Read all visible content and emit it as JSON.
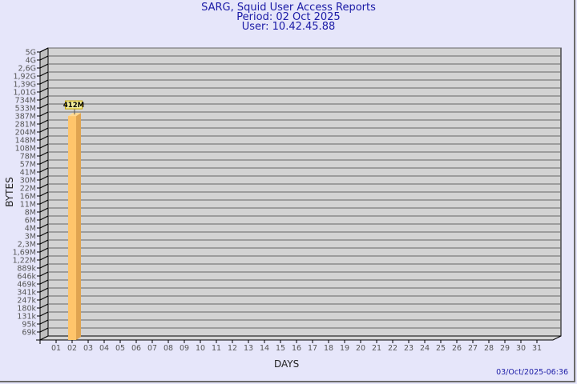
{
  "chart_data": {
    "type": "bar",
    "title": [
      "SARG, Squid User Access Reports",
      "Period: 02 Oct 2025",
      "User: 10.42.45.88"
    ],
    "xlabel": "DAYS",
    "ylabel": "BYTES",
    "y_scale": "log",
    "y_ticks": [
      "5G",
      "4G",
      "2,6G",
      "1,92G",
      "1,39G",
      "1,01G",
      "734M",
      "533M",
      "387M",
      "281M",
      "204M",
      "148M",
      "108M",
      "78M",
      "57M",
      "41M",
      "30M",
      "22M",
      "16M",
      "11M",
      "8M",
      "6M",
      "4M",
      "3M",
      "2,3M",
      "1,69M",
      "1,22M",
      "889k",
      "646k",
      "469k",
      "341k",
      "247k",
      "180k",
      "131k",
      "95k",
      "69k"
    ],
    "categories": [
      "01",
      "02",
      "03",
      "04",
      "05",
      "06",
      "07",
      "08",
      "09",
      "10",
      "11",
      "12",
      "13",
      "14",
      "15",
      "16",
      "17",
      "18",
      "19",
      "20",
      "21",
      "22",
      "23",
      "24",
      "25",
      "26",
      "27",
      "28",
      "29",
      "30",
      "31"
    ],
    "values": [
      null,
      "412M",
      null,
      null,
      null,
      null,
      null,
      null,
      null,
      null,
      null,
      null,
      null,
      null,
      null,
      null,
      null,
      null,
      null,
      null,
      null,
      null,
      null,
      null,
      null,
      null,
      null,
      null,
      null,
      null,
      null
    ],
    "data_labels": [
      "412M"
    ],
    "grid": true,
    "colors": {
      "bar": "#ffc56b",
      "bar_side": "#e0a450",
      "plot": "#d3d3d3",
      "background": "#e6e6fa",
      "title": "#1a1aa6"
    }
  },
  "timestamp": "03/Oct/2025-06:36"
}
